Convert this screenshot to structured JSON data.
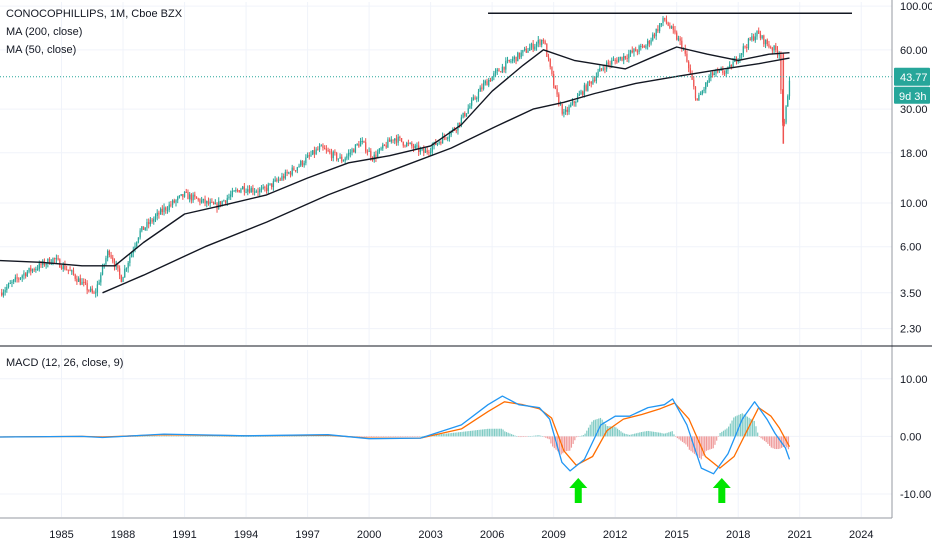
{
  "legend": {
    "title": "CONOCOPHILLIPS, 1M, Cboe BZX",
    "ma200": "MA (200, close)",
    "ma50": "MA (50, close)",
    "macd": "MACD (12, 26, close, 9)"
  },
  "price_tag": {
    "value": "43.77",
    "countdown": "9d 3h",
    "color": "#26a69a"
  },
  "colors": {
    "up": "#26a69a",
    "down": "#ef5350",
    "macd_line": "#2196f3",
    "signal_line": "#ff6d00",
    "ma": "#131722",
    "arrow": "#00e600"
  },
  "chart_data": [
    {
      "type": "candlestick",
      "title": "CONOCOPHILLIPS, 1M, Cboe BZX",
      "yscale": "log",
      "ylim": [
        1.9,
        105
      ],
      "xlim": [
        1982.0,
        2025.5
      ],
      "x_tick_labels": [
        "1985",
        "1988",
        "1991",
        "1994",
        "1997",
        "2000",
        "2003",
        "2006",
        "2009",
        "2012",
        "2015",
        "2018",
        "2021",
        "2024"
      ],
      "x_ticks": [
        1985,
        1988,
        1991,
        1994,
        1997,
        2000,
        2003,
        2006,
        2009,
        2012,
        2015,
        2018,
        2021,
        2024
      ],
      "y_tick_labels": [
        "100.00",
        "60.00",
        "30.00",
        "18.00",
        "10.00",
        "6.00",
        "3.50",
        "2.30"
      ],
      "y_ticks": [
        100,
        60,
        30,
        18,
        10,
        6,
        3.5,
        2.3
      ],
      "price_path": [
        [
          1982.0,
          3.5
        ],
        [
          1983.2,
          4.4
        ],
        [
          1984.6,
          5.2
        ],
        [
          1985.3,
          4.6
        ],
        [
          1986.6,
          3.4
        ],
        [
          1987.3,
          5.8
        ],
        [
          1987.9,
          4.1
        ],
        [
          1988.8,
          7.1
        ],
        [
          1990.0,
          9.3
        ],
        [
          1991.0,
          11.0
        ],
        [
          1992.5,
          9.6
        ],
        [
          1993.8,
          12.0
        ],
        [
          1994.8,
          11.5
        ],
        [
          1996.2,
          14.5
        ],
        [
          1997.6,
          19.0
        ],
        [
          1998.7,
          16.5
        ],
        [
          1999.6,
          20.5
        ],
        [
          2000.2,
          17.0
        ],
        [
          2001.2,
          21.5
        ],
        [
          2002.7,
          18.0
        ],
        [
          2004.2,
          24.0
        ],
        [
          2005.6,
          40.0
        ],
        [
          2006.6,
          50.0
        ],
        [
          2007.9,
          62.0
        ],
        [
          2008.5,
          68.0
        ],
        [
          2009.1,
          36.0
        ],
        [
          2009.5,
          28.0
        ],
        [
          2010.5,
          38.0
        ],
        [
          2011.5,
          50.0
        ],
        [
          2012.5,
          56.0
        ],
        [
          2013.5,
          63.0
        ],
        [
          2014.4,
          86.0
        ],
        [
          2015.3,
          62.0
        ],
        [
          2016.0,
          33.0
        ],
        [
          2016.7,
          45.0
        ],
        [
          2017.5,
          47.0
        ],
        [
          2018.3,
          62.0
        ],
        [
          2018.9,
          73.0
        ],
        [
          2019.5,
          63.0
        ],
        [
          2020.0,
          58.0
        ],
        [
          2020.2,
          22.0
        ],
        [
          2020.5,
          43.77
        ]
      ],
      "ma50": [
        [
          1982.0,
          5.1
        ],
        [
          1984.0,
          5.0
        ],
        [
          1986.0,
          4.8
        ],
        [
          1987.6,
          4.8
        ],
        [
          1989.0,
          6.3
        ],
        [
          1991.0,
          8.8
        ],
        [
          1993.0,
          9.8
        ],
        [
          1995.0,
          11.0
        ],
        [
          1997.0,
          13.4
        ],
        [
          1999.0,
          16.0
        ],
        [
          2001.0,
          17.4
        ],
        [
          2003.0,
          19.5
        ],
        [
          2004.5,
          25.0
        ],
        [
          2006.0,
          37.0
        ],
        [
          2007.5,
          50.0
        ],
        [
          2008.5,
          60.0
        ],
        [
          2010.0,
          53.0
        ],
        [
          2011.5,
          50.0
        ],
        [
          2012.5,
          48.0
        ],
        [
          2013.8,
          55.0
        ],
        [
          2015.0,
          62.0
        ],
        [
          2016.5,
          57.0
        ],
        [
          2018.0,
          53.0
        ],
        [
          2019.5,
          57.0
        ],
        [
          2020.5,
          58.0
        ]
      ],
      "ma200": [
        [
          1987.0,
          3.5
        ],
        [
          1989.0,
          4.3
        ],
        [
          1992.0,
          6.0
        ],
        [
          1995.0,
          8.0
        ],
        [
          1998.0,
          11.0
        ],
        [
          2001.0,
          14.5
        ],
        [
          2004.0,
          19.0
        ],
        [
          2006.0,
          24.0
        ],
        [
          2008.0,
          30.0
        ],
        [
          2009.5,
          32.5
        ],
        [
          2011.0,
          36.0
        ],
        [
          2013.0,
          40.5
        ],
        [
          2015.0,
          44.0
        ],
        [
          2017.0,
          47.5
        ],
        [
          2019.0,
          51.0
        ],
        [
          2020.5,
          54.5
        ]
      ],
      "resistance": {
        "level": 92,
        "x_start": 2005.8,
        "x_end": 2025.5
      },
      "reference_level": 43.77
    },
    {
      "type": "line",
      "title": "MACD (12, 26, close, 9)",
      "ylim": [
        -14,
        15
      ],
      "y_tick_labels": [
        "10.00",
        "0.00",
        "-10.00"
      ],
      "y_ticks": [
        10,
        0,
        -10
      ],
      "series": [
        {
          "role": "macd",
          "points": [
            [
              1982.0,
              -0.1
            ],
            [
              1986.0,
              0.0
            ],
            [
              1987.0,
              -0.2
            ],
            [
              1990.0,
              0.4
            ],
            [
              1994.0,
              0.1
            ],
            [
              1998.0,
              0.3
            ],
            [
              2000.0,
              -0.4
            ],
            [
              2002.5,
              -0.3
            ],
            [
              2004.5,
              2.0
            ],
            [
              2005.8,
              5.5
            ],
            [
              2006.5,
              7.0
            ],
            [
              2007.3,
              5.5
            ],
            [
              2008.3,
              5.0
            ],
            [
              2008.8,
              3.0
            ],
            [
              2009.4,
              -4.5
            ],
            [
              2009.8,
              -6.0
            ],
            [
              2010.5,
              -4.0
            ],
            [
              2011.3,
              2.0
            ],
            [
              2012.0,
              3.5
            ],
            [
              2012.7,
              3.5
            ],
            [
              2013.6,
              5.0
            ],
            [
              2014.4,
              5.5
            ],
            [
              2014.8,
              6.5
            ],
            [
              2015.5,
              2.0
            ],
            [
              2016.2,
              -5.5
            ],
            [
              2016.8,
              -6.5
            ],
            [
              2017.5,
              -3.0
            ],
            [
              2018.2,
              3.0
            ],
            [
              2018.8,
              6.0
            ],
            [
              2019.4,
              3.0
            ],
            [
              2019.8,
              0.5
            ],
            [
              2020.3,
              -2.0
            ],
            [
              2020.5,
              -4.0
            ]
          ]
        },
        {
          "role": "signal",
          "points": [
            [
              1982.0,
              -0.1
            ],
            [
              1986.0,
              0.0
            ],
            [
              1987.0,
              -0.1
            ],
            [
              1990.0,
              0.3
            ],
            [
              1994.0,
              0.1
            ],
            [
              1998.0,
              0.2
            ],
            [
              2000.0,
              -0.3
            ],
            [
              2002.5,
              -0.3
            ],
            [
              2004.5,
              1.3
            ],
            [
              2005.8,
              4.3
            ],
            [
              2006.6,
              6.0
            ],
            [
              2007.5,
              5.5
            ],
            [
              2008.3,
              4.8
            ],
            [
              2008.9,
              3.2
            ],
            [
              2009.5,
              -2.5
            ],
            [
              2010.1,
              -5.0
            ],
            [
              2010.9,
              -3.5
            ],
            [
              2011.6,
              1.0
            ],
            [
              2012.4,
              3.0
            ],
            [
              2013.3,
              3.8
            ],
            [
              2014.2,
              4.8
            ],
            [
              2014.9,
              5.8
            ],
            [
              2015.6,
              3.0
            ],
            [
              2016.4,
              -3.5
            ],
            [
              2017.1,
              -5.5
            ],
            [
              2017.8,
              -3.5
            ],
            [
              2018.5,
              1.5
            ],
            [
              2019.0,
              5.0
            ],
            [
              2019.6,
              3.5
            ],
            [
              2020.0,
              1.5
            ],
            [
              2020.5,
              -1.8
            ]
          ]
        }
      ],
      "annotations": [
        {
          "type": "up-arrow",
          "x": 2010.2
        },
        {
          "type": "up-arrow",
          "x": 2017.2
        }
      ]
    }
  ]
}
